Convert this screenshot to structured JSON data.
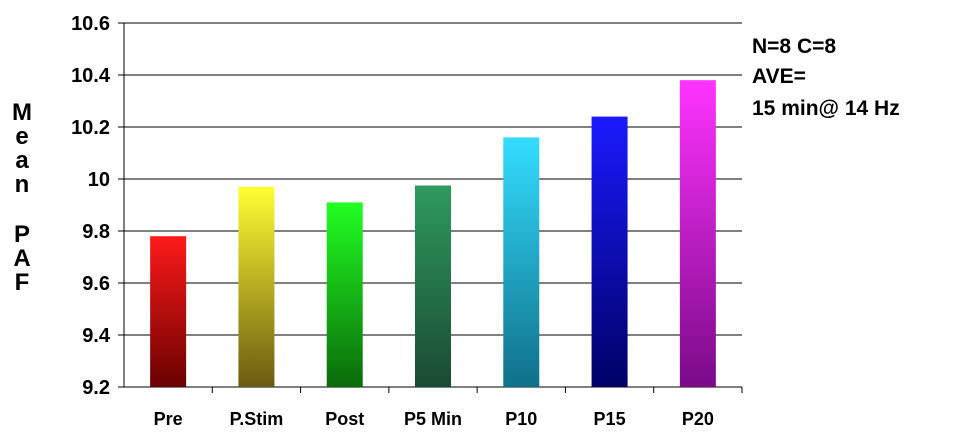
{
  "chart_data": {
    "type": "bar",
    "categories": [
      "Pre",
      "P.Stim",
      "Post",
      "P5 Min",
      "P10",
      "P15",
      "P20"
    ],
    "values": [
      9.78,
      9.97,
      9.91,
      9.975,
      10.16,
      10.24,
      10.38
    ],
    "ylim": [
      9.2,
      10.6
    ],
    "yticks": [
      "9.2",
      "9.4",
      "9.6",
      "9.8",
      "10",
      "10.2",
      "10.4",
      "10.6"
    ],
    "ylabel_lines": [
      "Mean",
      "PAF"
    ],
    "grid": true,
    "colors": [
      [
        "#ff1a1a",
        "#6a0000"
      ],
      [
        "#ffff33",
        "#6b5a10"
      ],
      [
        "#22ff22",
        "#0a6a0a"
      ],
      [
        "#2e9a5e",
        "#1a4a33"
      ],
      [
        "#33ddff",
        "#10708a"
      ],
      [
        "#1a1aff",
        "#000066"
      ],
      [
        "#ff33ff",
        "#7a0a88"
      ]
    ],
    "annotations": [
      "N=8  C=8",
      "AVE=",
      "15 min@ 14 Hz"
    ]
  }
}
